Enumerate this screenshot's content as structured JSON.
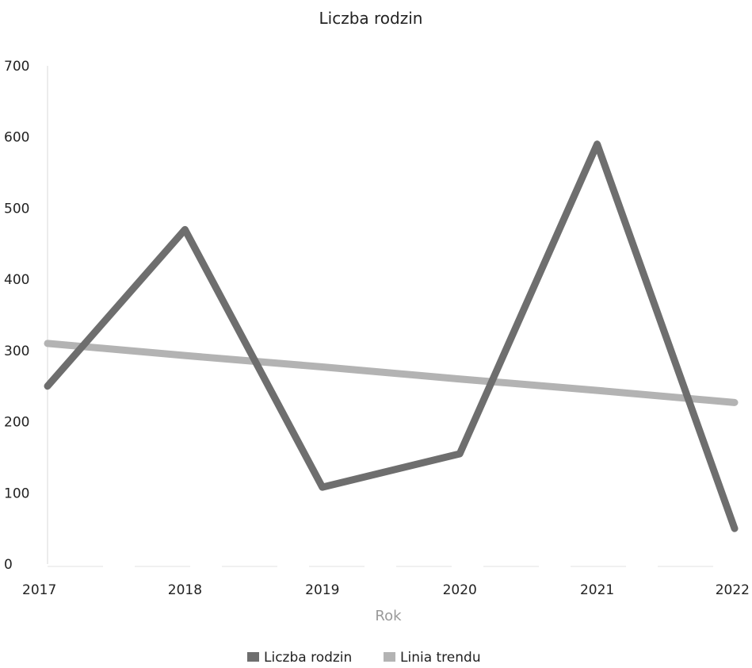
{
  "chart_data": {
    "type": "line",
    "title": "Liczba rodzin",
    "xlabel": "Rok",
    "ylabel": "",
    "x": [
      "2017",
      "2018",
      "2019",
      "2020",
      "2021",
      "2022"
    ],
    "ylim": [
      0,
      700
    ],
    "yticks": [
      0,
      100,
      200,
      300,
      400,
      500,
      600,
      700
    ],
    "grid": false,
    "legend_position": "bottom",
    "series": [
      {
        "name": "Liczba rodzin",
        "values": [
          250,
          470,
          108,
          155,
          590,
          50
        ],
        "color": "#6e6e6e"
      },
      {
        "name": "Linia trendu",
        "values": [
          310,
          293,
          277,
          260,
          244,
          227
        ],
        "color": "#b3b3b3"
      }
    ]
  }
}
